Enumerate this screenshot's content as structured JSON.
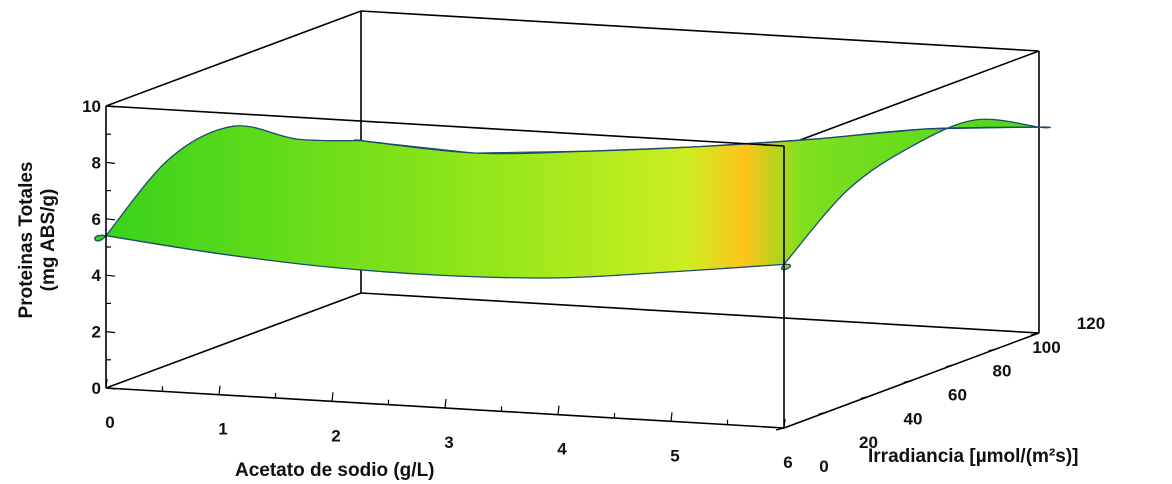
{
  "chart_data": {
    "type": "surface",
    "title": "",
    "xlabel": "Acetato de sodio (g/L)",
    "ylabel_line1": "Proteinas Totales",
    "ylabel_line2": "(mg ABS/g)",
    "zlabel": "Irradiancia [µmol/(m²s)]",
    "x_ticks": [
      "0",
      "1",
      "2",
      "3",
      "4",
      "5",
      "6"
    ],
    "y_ticks": [
      "0",
      "2",
      "4",
      "6",
      "8",
      "10"
    ],
    "z_ticks": [
      "0",
      "20",
      "40",
      "60",
      "80",
      "100",
      "120"
    ],
    "xlim": [
      0,
      6
    ],
    "ylim": [
      0,
      10
    ],
    "zlim": [
      0,
      120
    ],
    "front_edge": {
      "irradiance": 0,
      "acetato": [
        0,
        1,
        2,
        3,
        4,
        5,
        6
      ],
      "proteinas": [
        5.4,
        5.0,
        4.75,
        4.7,
        4.85,
        5.3,
        5.8
      ]
    },
    "back_edge": {
      "irradiance": 120,
      "acetato": [
        0,
        1,
        2,
        3,
        4,
        5,
        6
      ],
      "proteinas": [
        5.4,
        5.2,
        5.5,
        5.9,
        6.4,
        7.0,
        7.3
      ]
    },
    "left_edge": {
      "acetato": 0,
      "irradiance": [
        0,
        30,
        60,
        90,
        120
      ],
      "proteinas": [
        5.4,
        7.3,
        7.6,
        6.3,
        5.4
      ]
    },
    "right_edge": {
      "acetato": 6,
      "irradiance": [
        0,
        30,
        60,
        90,
        120
      ],
      "proteinas": [
        5.8,
        7.6,
        8.3,
        8.4,
        7.3
      ]
    },
    "colorscale": [
      "#36d21b",
      "#9de81a",
      "#f7f02a",
      "#ffc21a"
    ],
    "grid": false,
    "legend": "none"
  }
}
